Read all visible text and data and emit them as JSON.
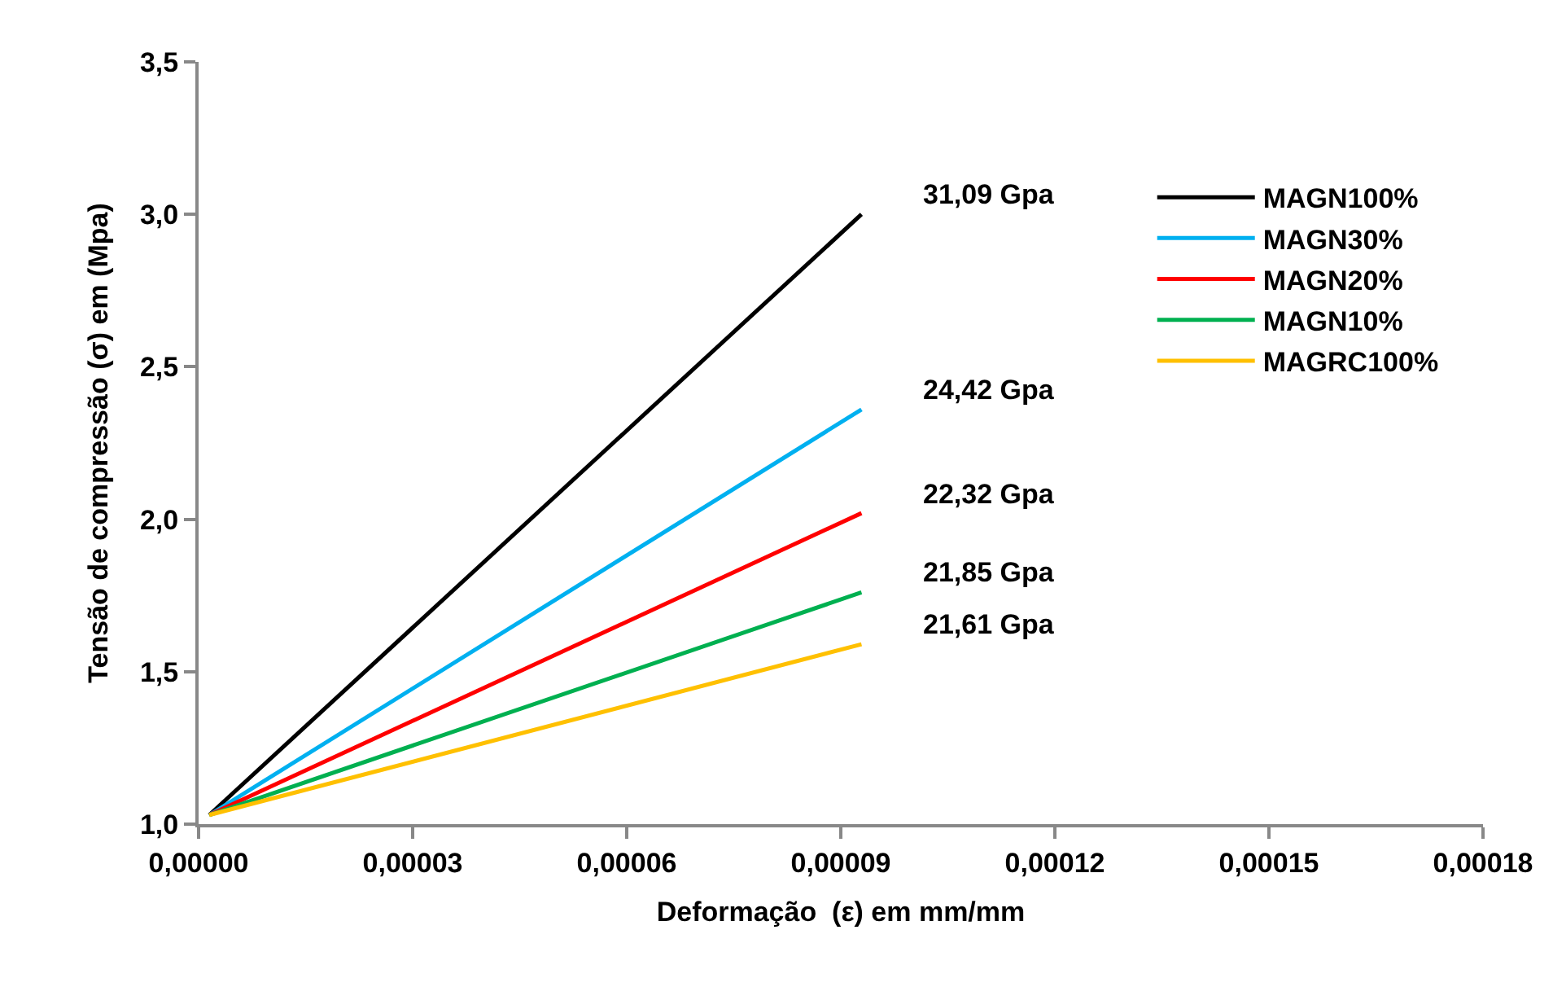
{
  "chart_data": {
    "type": "line",
    "xlabel": "Deformação  (ε) em mm/mm",
    "ylabel": "Tensão de compressão (σ) em (Mpa)",
    "xlim": [
      0,
      0.00018
    ],
    "xticks": [
      {
        "value": 0,
        "label": "0,00000"
      },
      {
        "value": 3e-05,
        "label": "0,00003"
      },
      {
        "value": 6e-05,
        "label": "0,00006"
      },
      {
        "value": 9e-05,
        "label": "0,00009"
      },
      {
        "value": 0.00012,
        "label": "0,00012"
      },
      {
        "value": 0.00015,
        "label": "0,00015"
      },
      {
        "value": 0.00018,
        "label": "0,00018"
      }
    ],
    "ylim": [
      1.0,
      3.5
    ],
    "yticks": [
      {
        "value": 1.0,
        "label": "1,0"
      },
      {
        "value": 1.5,
        "label": "1,5"
      },
      {
        "value": 2.0,
        "label": "2,0"
      },
      {
        "value": 2.5,
        "label": "2,5"
      },
      {
        "value": 3.0,
        "label": "3,0"
      },
      {
        "value": 3.5,
        "label": "3,5"
      }
    ],
    "x": [
      1.5e-06,
      9.29e-05
    ],
    "series": [
      {
        "name": "MAGN100%",
        "color": "#000000",
        "values": [
          1.03,
          3.0
        ]
      },
      {
        "name": "MAGN30%",
        "color": "#00b0f0",
        "values": [
          1.03,
          2.36
        ]
      },
      {
        "name": "MAGN20%",
        "color": "#ff0000",
        "values": [
          1.03,
          2.02
        ]
      },
      {
        "name": "MAGN10%",
        "color": "#00b050",
        "values": [
          1.03,
          1.76
        ]
      },
      {
        "name": "MAGRC100%",
        "color": "#ffc000",
        "values": [
          1.03,
          1.59
        ]
      }
    ],
    "annotations": [
      "31,09 Gpa",
      "24,42 Gpa",
      "22,32 Gpa",
      "21,85 Gpa",
      "21,61 Gpa"
    ],
    "grid": false,
    "legend": "top right",
    "marker": "none",
    "line_style": "solid"
  }
}
